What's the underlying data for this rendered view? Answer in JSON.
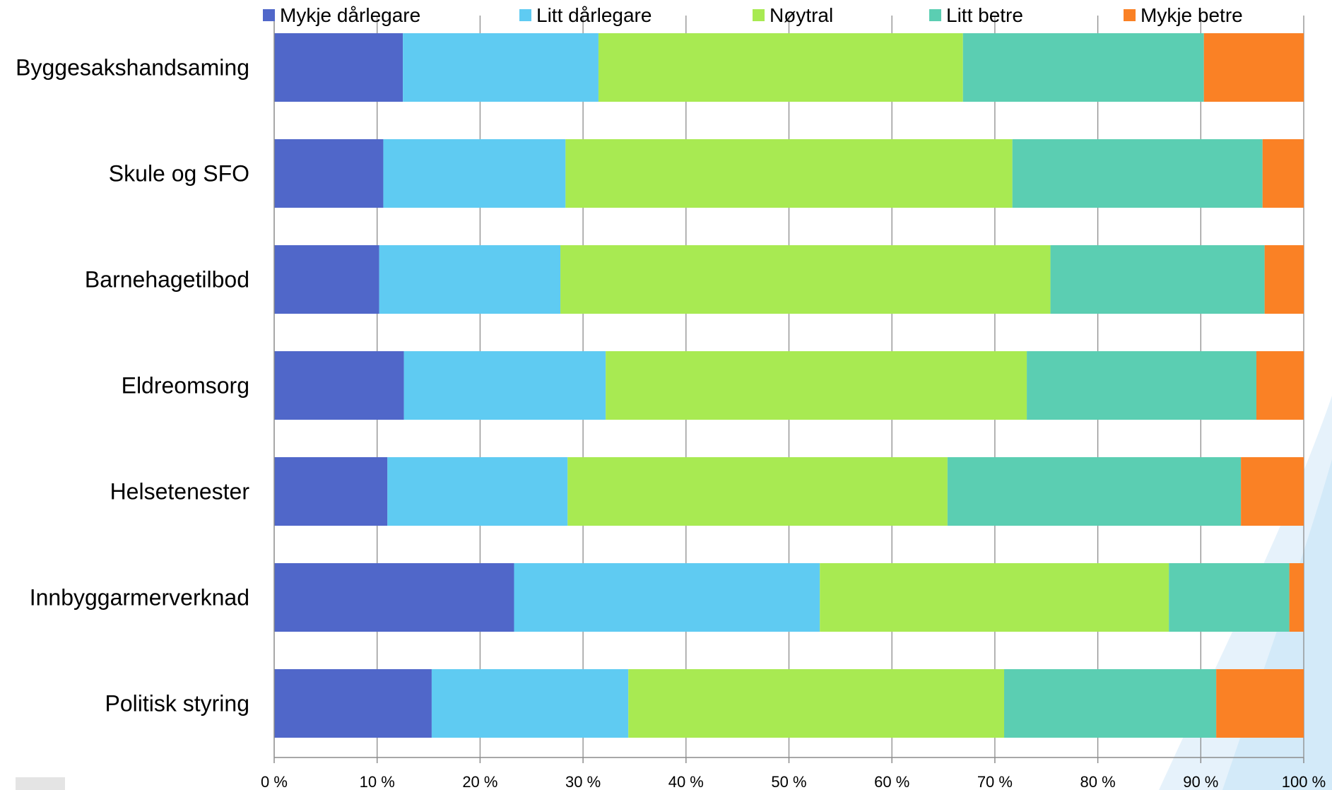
{
  "chart_data": {
    "type": "bar",
    "orientation": "horizontal",
    "stacked": true,
    "percent_stacked": true,
    "categories": [
      "Byggesakshandsaming",
      "Skule og SFO",
      "Barnehagetilbod",
      "Eldreomsorg",
      "Helsetenester",
      "Innbyggarmerverknad",
      "Politisk styring"
    ],
    "series": [
      {
        "name": "Mykje dårlegare",
        "color": "#5067C9",
        "values": [
          12.5,
          10.6,
          10.2,
          12.6,
          11.0,
          23.3,
          15.3
        ]
      },
      {
        "name": "Litt dårlegare",
        "color": "#5FCBF2",
        "values": [
          19.0,
          17.7,
          17.6,
          19.6,
          17.5,
          29.7,
          19.1
        ]
      },
      {
        "name": "Nøytral",
        "color": "#A8EA52",
        "values": [
          35.4,
          43.4,
          47.6,
          40.9,
          36.9,
          33.9,
          36.5
        ]
      },
      {
        "name": "Litt betre",
        "color": "#5BCEB2",
        "values": [
          23.4,
          24.3,
          20.8,
          22.3,
          28.5,
          11.7,
          20.6
        ]
      },
      {
        "name": "Mykje betre",
        "color": "#FA8125",
        "values": [
          9.7,
          4.0,
          3.8,
          4.6,
          6.1,
          1.4,
          8.5
        ]
      }
    ],
    "xlim": [
      0,
      100
    ],
    "x_ticks": [
      "0 %",
      "10 %",
      "20 %",
      "30 %",
      "40 %",
      "50 %",
      "60 %",
      "70 %",
      "80 %",
      "90 %",
      "100 %"
    ],
    "grid": true,
    "legend_position": "top",
    "title": "",
    "xlabel": "",
    "ylabel": ""
  }
}
